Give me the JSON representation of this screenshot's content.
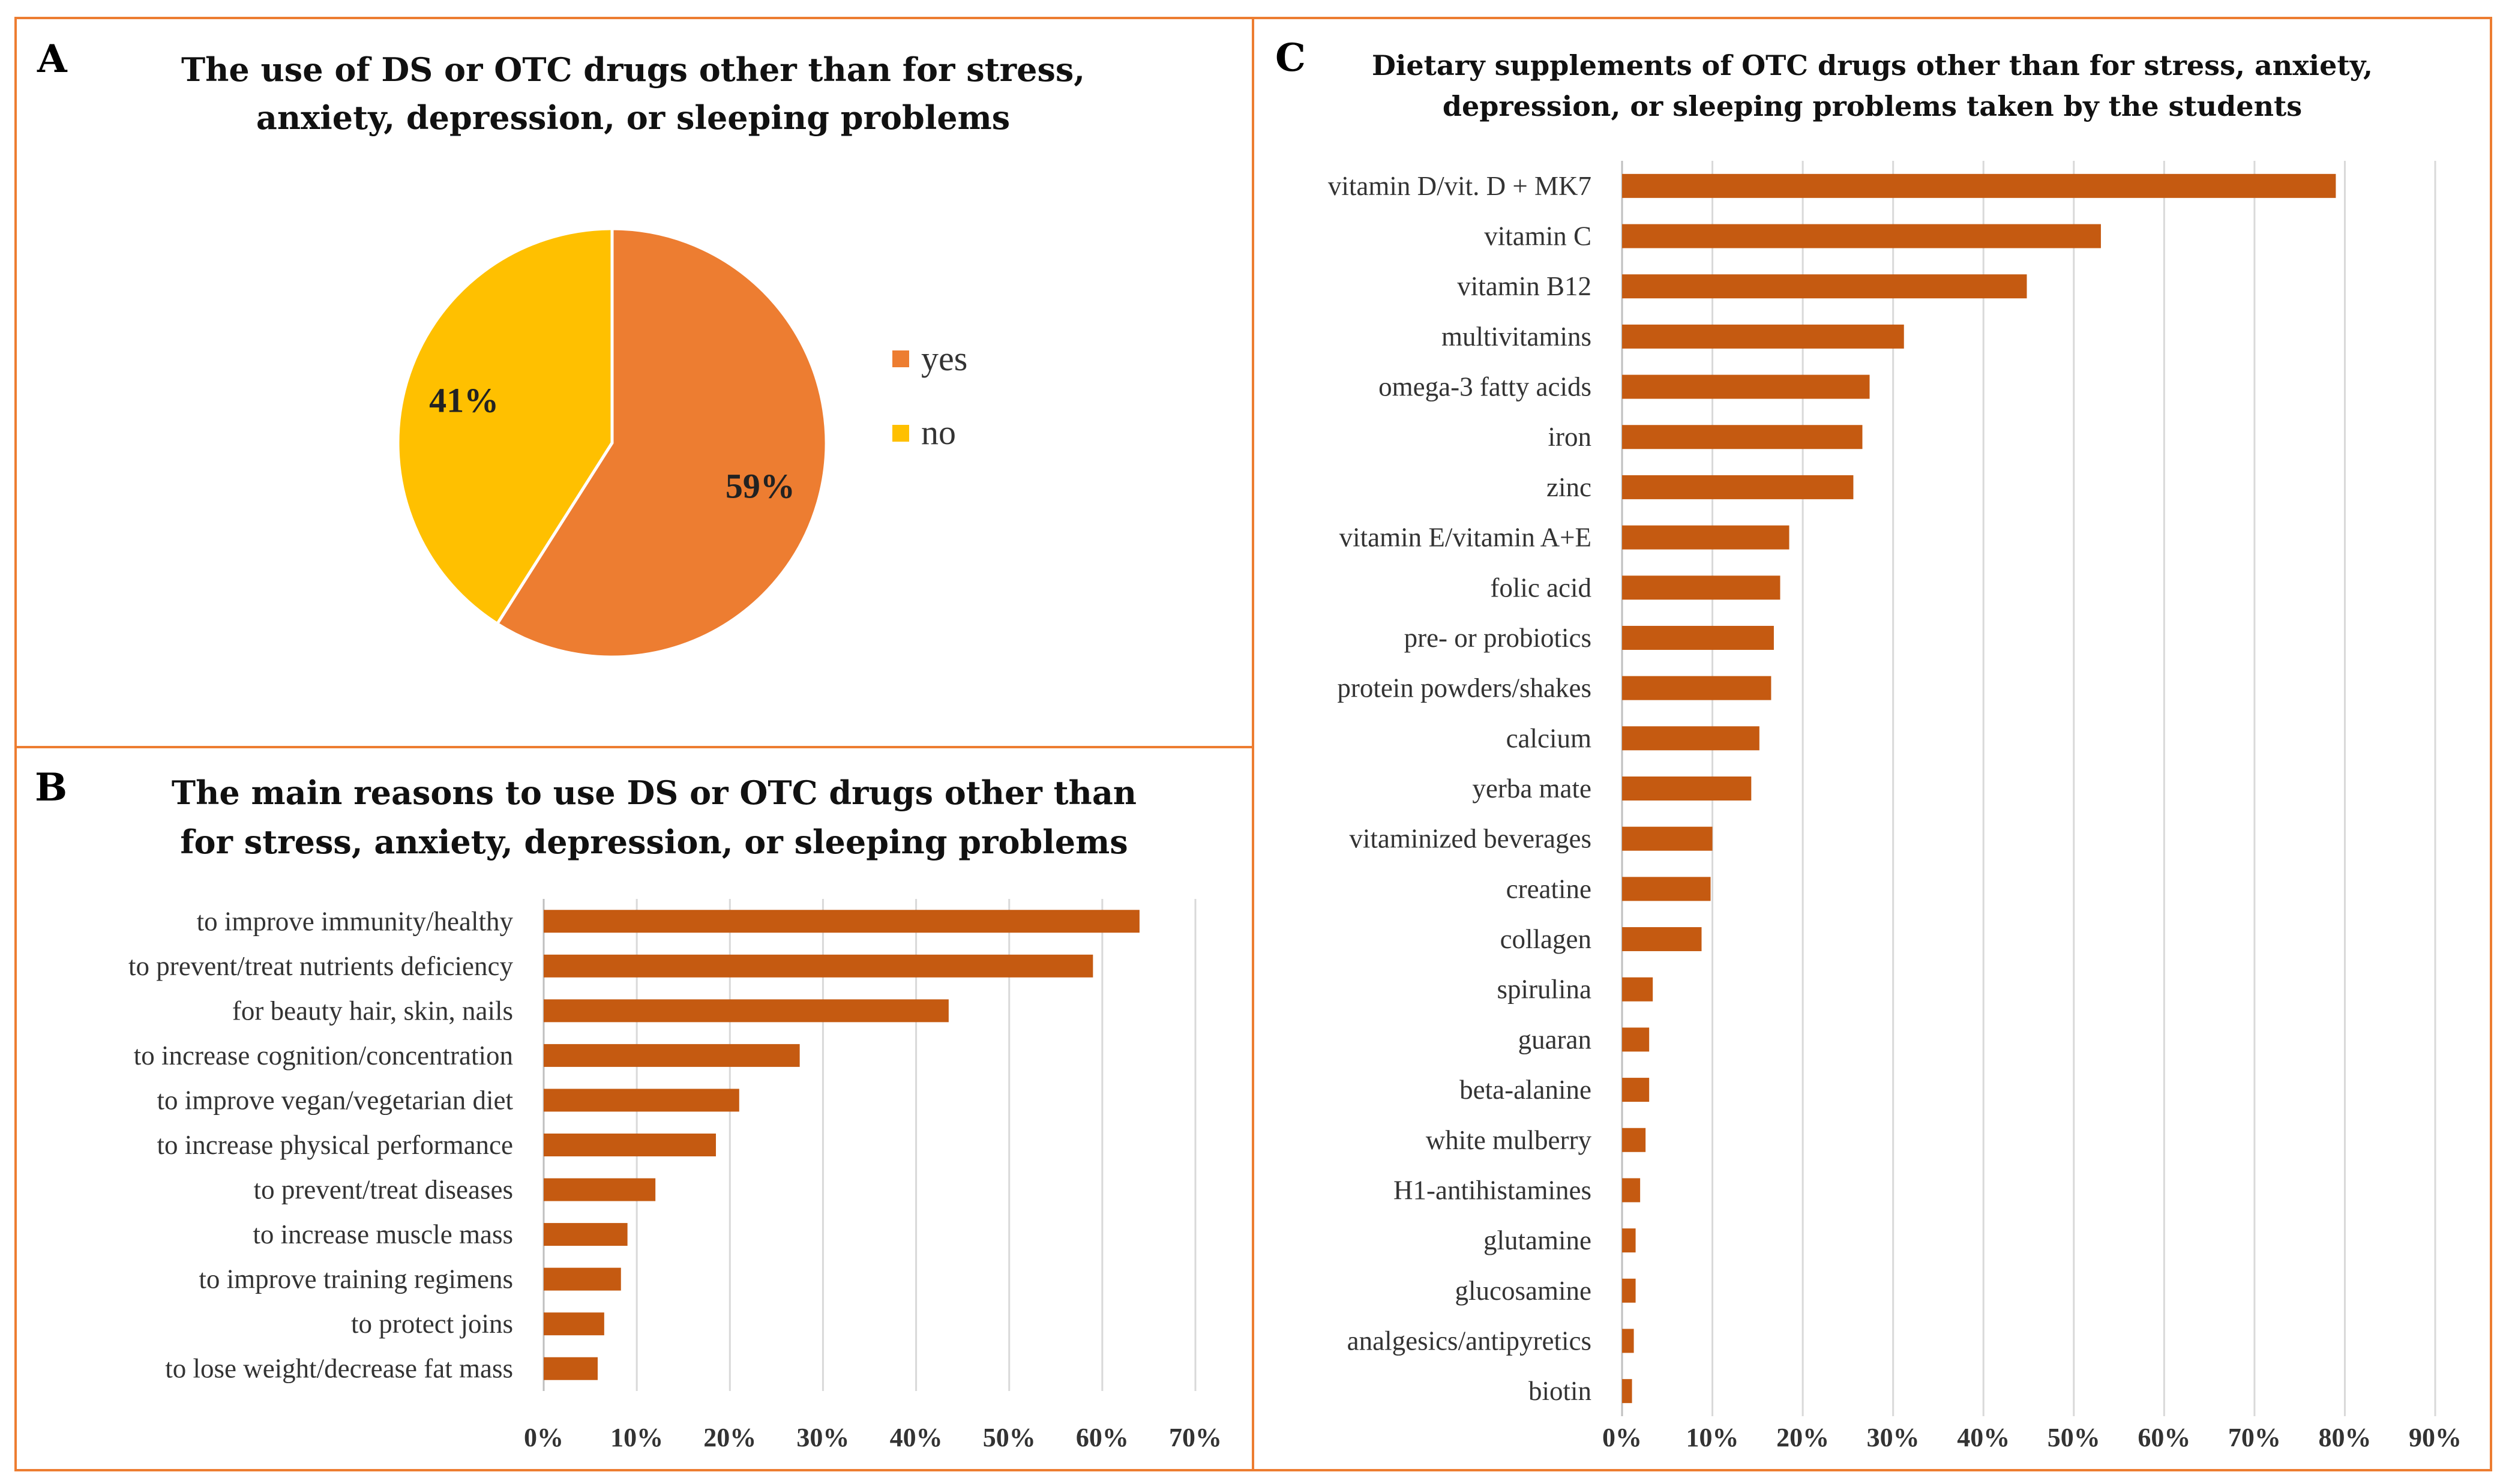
{
  "colors": {
    "border": "#ED7D31",
    "bar": "#C55A11",
    "pie_yes": "#ED7D31",
    "pie_no": "#FFC000"
  },
  "chart_data": [
    {
      "panel": "A",
      "type": "pie",
      "title_lines": [
        "The use of DS or OTC drugs other than for stress,",
        "anxiety, depression, or sleeping problems"
      ],
      "legend_position": "right",
      "slices": [
        {
          "name": "yes",
          "value": 59,
          "label": "59%"
        },
        {
          "name": "no",
          "value": 41,
          "label": "41%"
        }
      ]
    },
    {
      "panel": "B",
      "type": "bar",
      "orientation": "horizontal",
      "title_lines": [
        "The main reasons to use DS or OTC drugs other than",
        "for stress, anxiety, depression, or sleeping problems"
      ],
      "categories": [
        "to improve immunity/healthy",
        "to prevent/treat nutrients deficiency",
        "for beauty hair, skin, nails",
        "to increase cognition/concentration",
        "to improve vegan/vegetarian diet",
        "to increase physical performance",
        "to prevent/treat diseases",
        "to increase muscle mass",
        "to improve training regimens",
        "to protect joins",
        "to lose weight/decrease fat mass"
      ],
      "values": [
        64,
        59,
        43.5,
        27.5,
        21,
        18.5,
        12,
        9,
        8.3,
        6.5,
        5.8
      ],
      "xlim": [
        0,
        70
      ],
      "ticks": [
        "0%",
        "10%",
        "20%",
        "30%",
        "40%",
        "50%",
        "60%",
        "70%"
      ],
      "grid": true
    },
    {
      "panel": "C",
      "type": "bar",
      "orientation": "horizontal",
      "title_lines": [
        "Dietary supplements of OTC drugs other than for stress, anxiety,",
        "depression, or sleeping problems taken by the students"
      ],
      "categories": [
        "vitamin D/vit. D + MK7",
        "vitamin C",
        "vitamin B12",
        "multivitamins",
        "omega-3 fatty acids",
        "iron",
        "zinc",
        "vitamin E/vitamin A+E",
        "folic acid",
        "pre- or probiotics",
        "protein powders/shakes",
        "calcium",
        "yerba mate",
        "vitaminized beverages",
        "creatine",
        "collagen",
        "spirulina",
        "guaran",
        "beta-alanine",
        "white mulberry",
        "H1-antihistamines",
        "glutamine",
        "glucosamine",
        "analgesics/antipyretics",
        "biotin"
      ],
      "values": [
        79,
        53,
        44.8,
        31.2,
        27.4,
        26.6,
        25.6,
        18.5,
        17.5,
        16.8,
        16.5,
        15.2,
        14.3,
        10,
        9.8,
        8.8,
        3.4,
        3,
        3,
        2.6,
        2,
        1.5,
        1.5,
        1.3,
        1.1
      ],
      "xlim": [
        0,
        90
      ],
      "ticks": [
        "0%",
        "10%",
        "20%",
        "30%",
        "40%",
        "50%",
        "60%",
        "70%",
        "80%",
        "90%"
      ],
      "grid": true
    }
  ]
}
